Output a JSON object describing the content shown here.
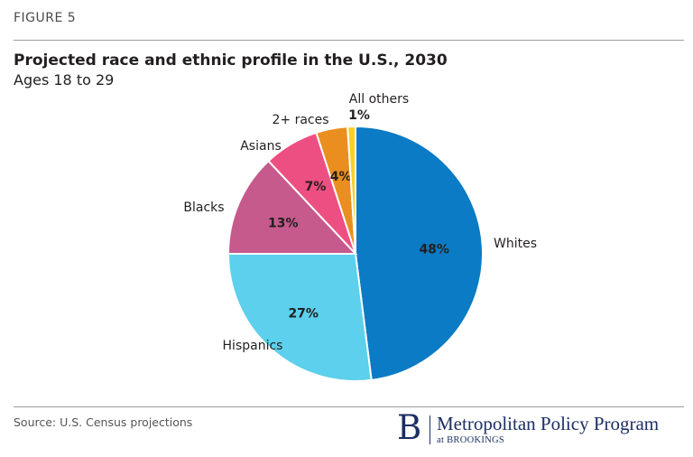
{
  "figure_label": "FIGURE 5",
  "chart_data": {
    "type": "pie",
    "title": "Projected race and ethnic profile in the U.S., 2030",
    "subtitle": "Ages 18 to 29",
    "slices": [
      {
        "name": "Whites",
        "value": 48,
        "label": "48%",
        "color": "#0a7bc4"
      },
      {
        "name": "Hispanics",
        "value": 27,
        "label": "27%",
        "color": "#5cd0ec"
      },
      {
        "name": "Blacks",
        "value": 13,
        "label": "13%",
        "color": "#c65a8c"
      },
      {
        "name": "Asians",
        "value": 7,
        "label": "7%",
        "color": "#ee4f82"
      },
      {
        "name": "2+ races",
        "value": 4,
        "label": "4%",
        "color": "#ea8f1f"
      },
      {
        "name": "All others",
        "value": 1,
        "label": "1%",
        "color": "#f7d11e"
      }
    ]
  },
  "footer": {
    "source": "Source: U.S. Census projections",
    "brand_letter": "B",
    "brand_name": "Metropolitan Policy Program",
    "brand_sub": "at BROOKINGS"
  }
}
